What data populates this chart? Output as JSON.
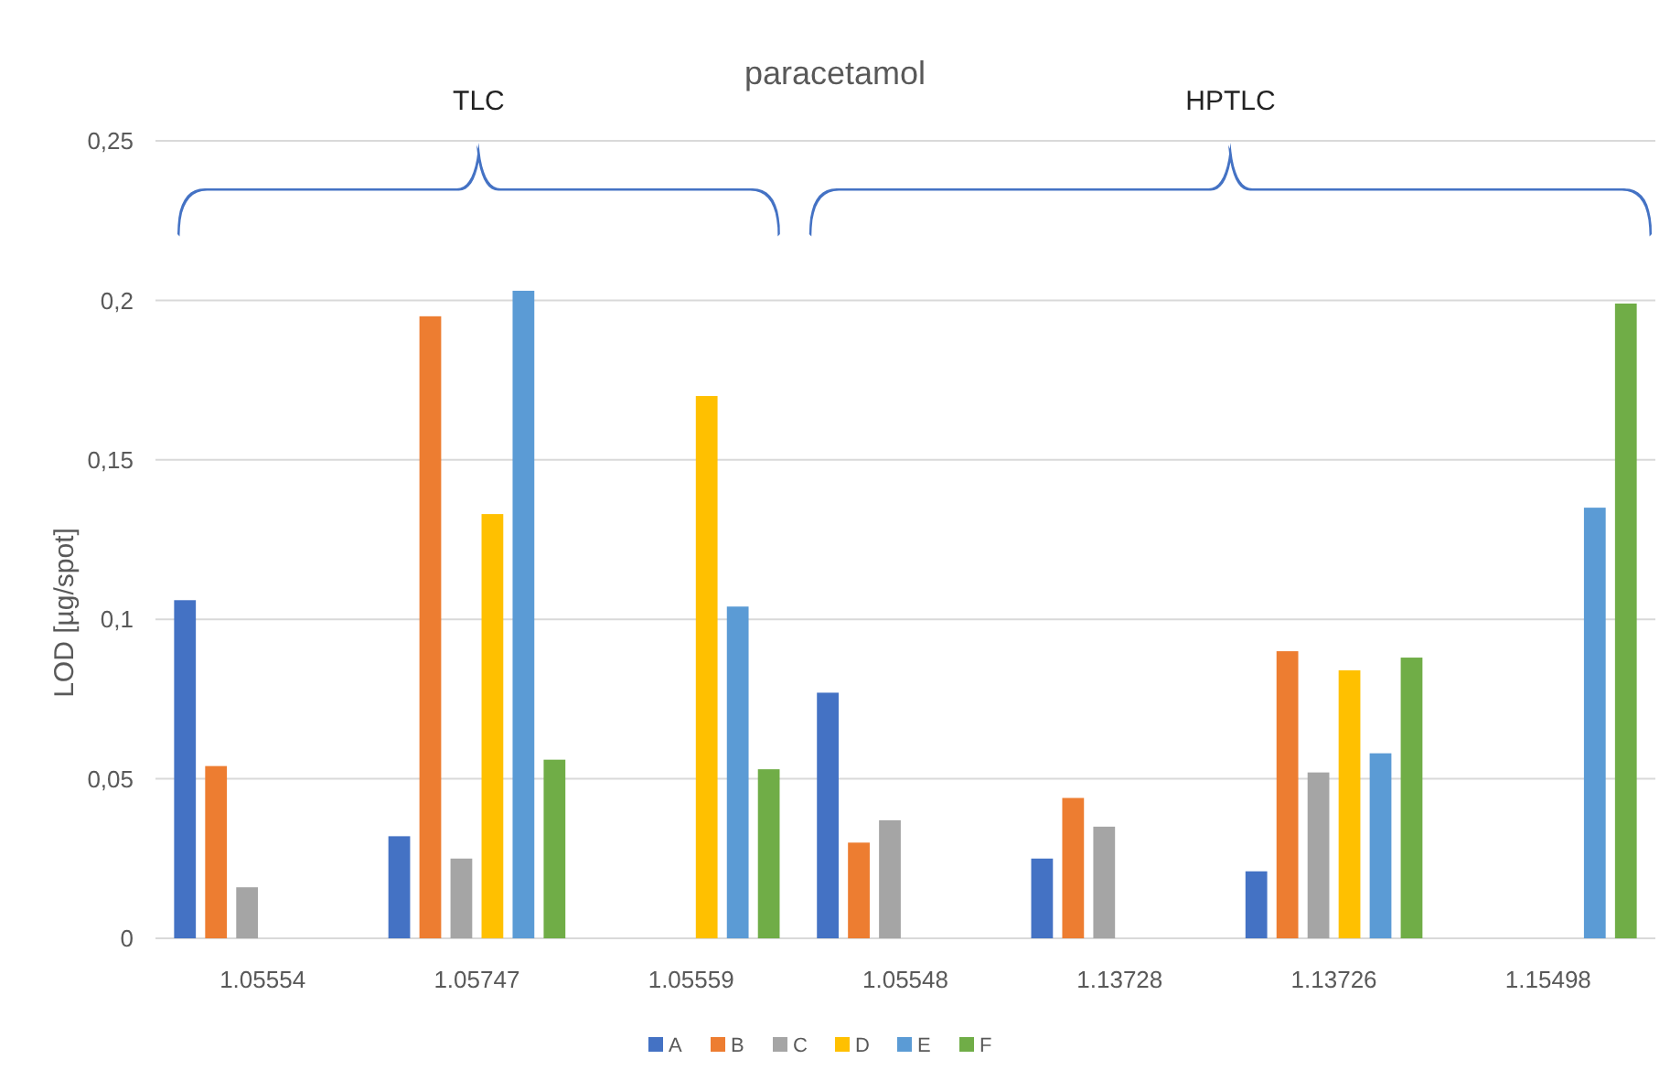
{
  "chart_data": {
    "type": "bar",
    "title": "paracetamol",
    "ylabel": "LOD [µg/spot]",
    "annotations": [
      "TLC",
      "HPTLC"
    ],
    "categories": [
      "1.05554",
      "1.05747",
      "1.05559",
      "1.05548",
      "1.13728",
      "1.13726",
      "1.15498"
    ],
    "series": [
      {
        "name": "A",
        "color": "#4472c4",
        "values": [
          0.106,
          0.032,
          null,
          0.077,
          0.025,
          0.021,
          null
        ]
      },
      {
        "name": "B",
        "color": "#ed7d31",
        "values": [
          0.054,
          0.195,
          null,
          0.03,
          0.044,
          0.09,
          null
        ]
      },
      {
        "name": "C",
        "color": "#a5a5a5",
        "values": [
          0.016,
          0.025,
          null,
          0.037,
          0.035,
          0.052,
          null
        ]
      },
      {
        "name": "D",
        "color": "#ffc000",
        "values": [
          null,
          0.133,
          0.17,
          null,
          null,
          0.084,
          null
        ]
      },
      {
        "name": "E",
        "color": "#5b9bd5",
        "values": [
          null,
          0.203,
          0.104,
          null,
          null,
          0.058,
          0.135
        ]
      },
      {
        "name": "F",
        "color": "#70ad47",
        "values": [
          null,
          0.056,
          0.053,
          null,
          null,
          0.088,
          0.199
        ]
      }
    ],
    "ylim": [
      0,
      0.25
    ],
    "yticks": [
      {
        "value": 0,
        "label": "0"
      },
      {
        "value": 0.05,
        "label": "0,05"
      },
      {
        "value": 0.1,
        "label": "0,1"
      },
      {
        "value": 0.15,
        "label": "0,15"
      },
      {
        "value": 0.2,
        "label": "0,2"
      },
      {
        "value": 0.25,
        "label": "0,25"
      }
    ],
    "grid": "y",
    "legend": "bottom"
  }
}
